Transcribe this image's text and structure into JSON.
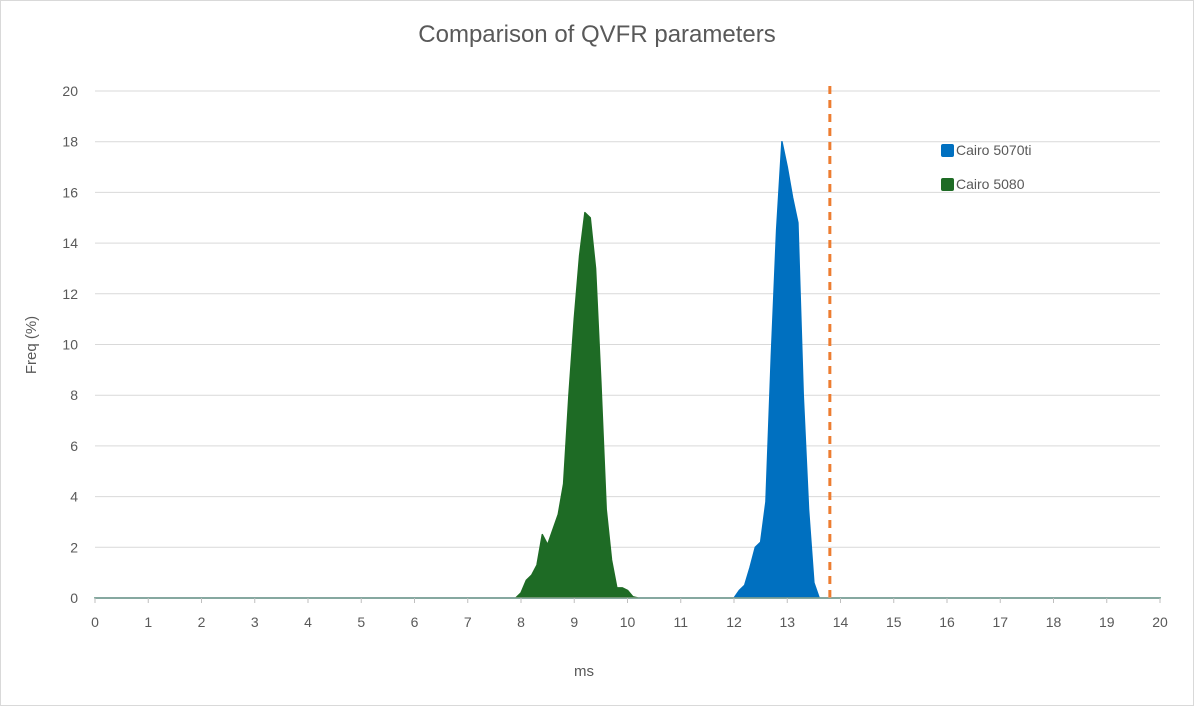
{
  "chart_data": {
    "type": "area",
    "title": "Comparison of QVFR parameters",
    "xlabel": "ms",
    "ylabel": "Freq (%)",
    "xlim": [
      0,
      20
    ],
    "ylim": [
      0,
      20
    ],
    "x_ticks": [
      0,
      1,
      2,
      3,
      4,
      5,
      6,
      7,
      8,
      9,
      10,
      11,
      12,
      13,
      14,
      15,
      16,
      17,
      18,
      19,
      20
    ],
    "y_ticks": [
      0,
      2,
      4,
      6,
      8,
      10,
      12,
      14,
      16,
      18,
      20
    ],
    "grid": true,
    "legend_position": "top-right",
    "series": [
      {
        "name": "Cairo 5070ti",
        "color": "#0070c0",
        "x": [
          0,
          12.0,
          12.1,
          12.2,
          12.3,
          12.4,
          12.5,
          12.6,
          12.7,
          12.8,
          12.9,
          13.0,
          13.1,
          13.2,
          13.3,
          13.4,
          13.5,
          13.6,
          20
        ],
        "y": [
          0,
          0,
          0.3,
          0.5,
          1.2,
          2.0,
          2.2,
          3.8,
          9.5,
          14.5,
          18.0,
          17.0,
          15.8,
          14.8,
          8.0,
          3.5,
          0.6,
          0,
          0
        ]
      },
      {
        "name": "Cairo 5080",
        "color": "#1e6b25",
        "x": [
          0,
          7.9,
          8.0,
          8.1,
          8.2,
          8.3,
          8.4,
          8.5,
          8.6,
          8.7,
          8.8,
          8.9,
          9.0,
          9.1,
          9.2,
          9.3,
          9.4,
          9.5,
          9.6,
          9.7,
          9.8,
          9.9,
          10.0,
          10.1,
          10.2,
          20
        ],
        "y": [
          0,
          0,
          0.2,
          0.7,
          0.9,
          1.3,
          2.5,
          2.1,
          2.7,
          3.3,
          4.5,
          8.0,
          11.0,
          13.5,
          15.2,
          15.0,
          13.0,
          8.5,
          3.5,
          1.5,
          0.4,
          0.4,
          0.3,
          0.05,
          0,
          0
        ]
      }
    ],
    "reference_line": {
      "x": 13.8,
      "style": "dashed",
      "color": "#ed7d31"
    }
  }
}
